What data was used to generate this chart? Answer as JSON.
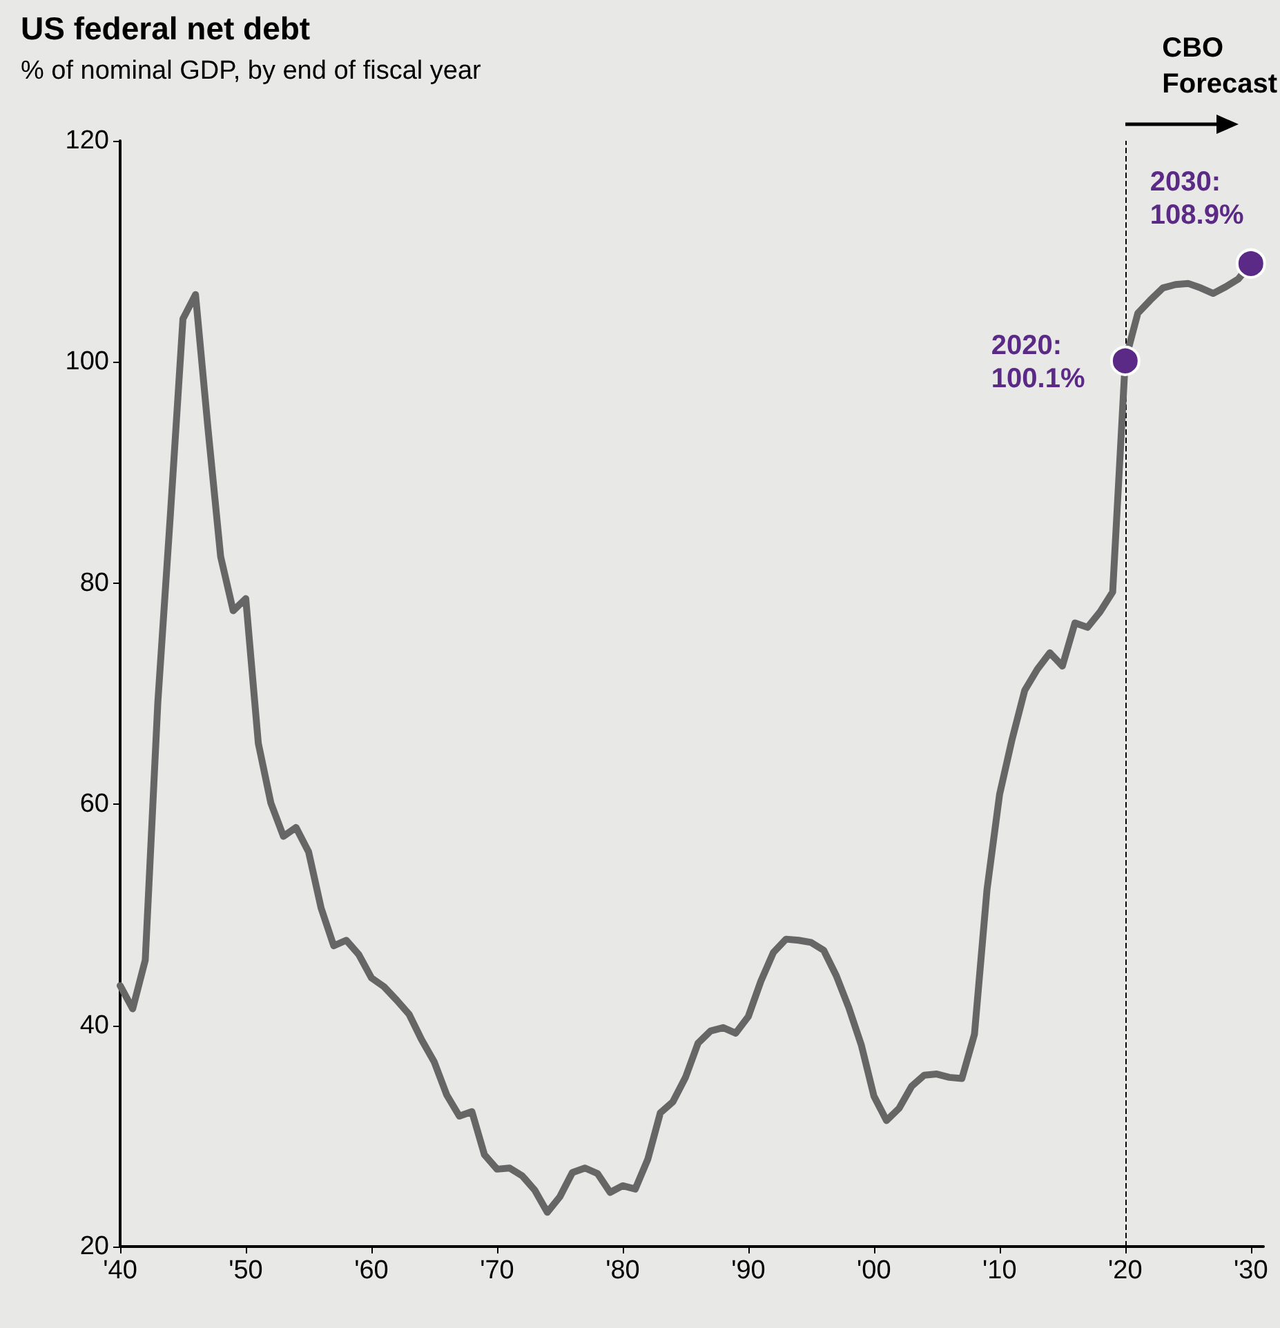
{
  "chart_data": {
    "type": "line",
    "title": "US federal net debt",
    "subtitle": "% of nominal GDP, by end of fiscal year",
    "annotations": [
      "CBO\nForecast"
    ],
    "series": [
      {
        "color": "#666666",
        "marker": "none",
        "x": [
          1940,
          1941,
          1942,
          1943,
          1944,
          1945,
          1946,
          1947,
          1948,
          1949,
          1950,
          1951,
          1952,
          1953,
          1954,
          1955,
          1956,
          1957,
          1958,
          1959,
          1960,
          1961,
          1962,
          1963,
          1964,
          1965,
          1966,
          1967,
          1968,
          1969,
          1970,
          1971,
          1972,
          1973,
          1974,
          1975,
          1976,
          1977,
          1978,
          1979,
          1980,
          1981,
          1982,
          1983,
          1984,
          1985,
          1986,
          1987,
          1988,
          1989,
          1990,
          1991,
          1992,
          1993,
          1994,
          1995,
          1996,
          1997,
          1998,
          1999,
          2000,
          2001,
          2002,
          2003,
          2004,
          2005,
          2006,
          2007,
          2008,
          2009,
          2010,
          2011,
          2012,
          2013,
          2014,
          2015,
          2016,
          2017,
          2018,
          2019,
          2020,
          2021,
          2022,
          2023,
          2024,
          2025,
          2026,
          2027,
          2028,
          2029,
          2030
        ],
        "values": [
          43.6,
          41.5,
          45.9,
          69.2,
          86.2,
          103.9,
          106.1,
          93.9,
          82.4,
          77.5,
          78.6,
          65.5,
          60.1,
          57.1,
          57.9,
          55.7,
          50.6,
          47.2,
          47.7,
          46.4,
          44.3,
          43.5,
          42.3,
          41.0,
          38.7,
          36.7,
          33.7,
          31.8,
          32.2,
          28.3,
          27.0,
          27.1,
          26.4,
          25.1,
          23.1,
          24.5,
          26.7,
          27.1,
          26.6,
          24.9,
          25.5,
          25.2,
          27.9,
          32.1,
          33.1,
          35.3,
          38.4,
          39.5,
          39.8,
          39.3,
          40.8,
          44.0,
          46.6,
          47.8,
          47.7,
          47.5,
          46.8,
          44.5,
          41.6,
          38.2,
          33.6,
          31.4,
          32.5,
          34.5,
          35.5,
          35.6,
          35.3,
          35.2,
          39.2,
          52.3,
          60.9,
          65.9,
          70.3,
          72.2,
          73.7,
          72.5,
          76.4,
          76.0,
          77.4,
          79.2,
          100.1,
          104.4,
          105.6,
          106.7,
          107.0,
          107.1,
          106.7,
          106.2,
          106.8,
          107.5,
          108.9
        ]
      },
      {
        "type": "scatter",
        "marker": "circle",
        "color": "#5b2a86",
        "x": [
          2020,
          2030
        ],
        "values": [
          100.1,
          108.9
        ],
        "value_labels": [
          "2020:\n100.1%",
          "2030:\n108.9%"
        ]
      }
    ],
    "xlim": [
      1940,
      2031
    ],
    "xticks": [
      {
        "value": 1940,
        "label": "'40"
      },
      {
        "value": 1950,
        "label": "'50"
      },
      {
        "value": 1960,
        "label": "'60"
      },
      {
        "value": 1970,
        "label": "'70"
      },
      {
        "value": 1980,
        "label": "'80"
      },
      {
        "value": 1990,
        "label": "'90"
      },
      {
        "value": 2000,
        "label": "'00"
      },
      {
        "value": 2010,
        "label": "'10"
      },
      {
        "value": 2020,
        "label": "'20"
      },
      {
        "value": 2030,
        "label": "'30"
      }
    ],
    "ylim": [
      20,
      120
    ],
    "yticks": [
      20,
      40,
      60,
      80,
      100,
      120
    ],
    "ref_lines": [
      {
        "axis": "x",
        "value": 2020,
        "label": null,
        "color": "#000000",
        "line_style": "dashed"
      }
    ],
    "grid": false,
    "line_style": "solid"
  }
}
